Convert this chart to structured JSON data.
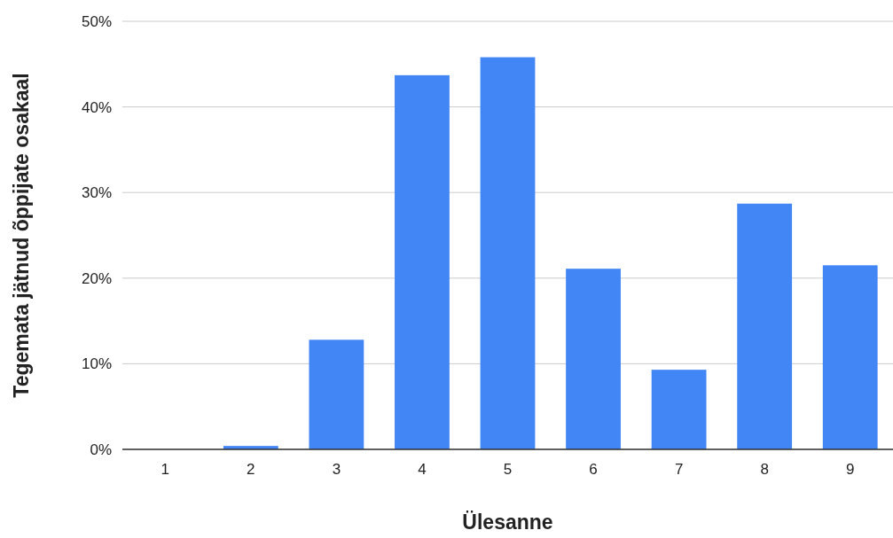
{
  "chart_data": {
    "type": "bar",
    "xlabel": "Ülesanne",
    "ylabel": "Tegemata jätnud õppijate osakaal",
    "categories": [
      "1",
      "2",
      "3",
      "4",
      "5",
      "6",
      "7",
      "8",
      "9"
    ],
    "values": [
      0,
      0.4,
      12.8,
      43.7,
      45.8,
      21.1,
      9.3,
      28.7,
      21.5
    ],
    "color": "#4285f4",
    "ylim": [
      0,
      50
    ],
    "yticks": [
      {
        "value": 0,
        "label": "0%"
      },
      {
        "value": 10,
        "label": "10%"
      },
      {
        "value": 20,
        "label": "20%"
      },
      {
        "value": 30,
        "label": "30%"
      },
      {
        "value": 40,
        "label": "40%"
      },
      {
        "value": 50,
        "label": "50%"
      }
    ],
    "grid": "y"
  }
}
